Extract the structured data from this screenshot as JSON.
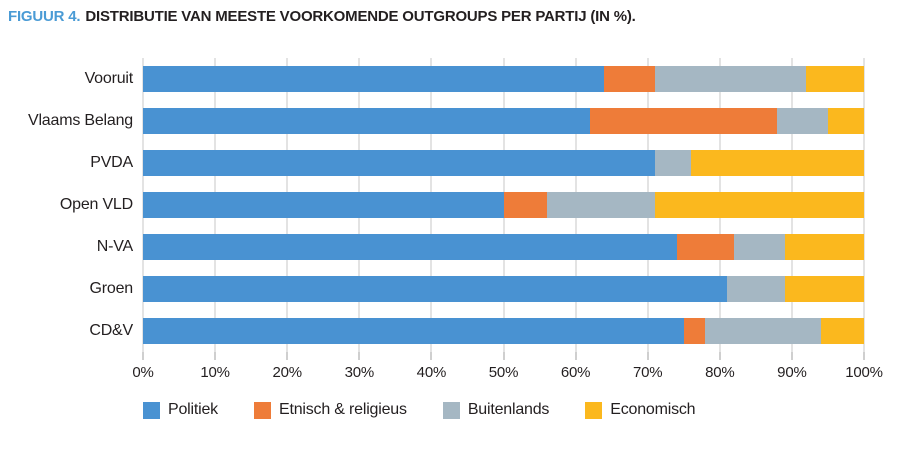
{
  "title": {
    "prefix": "FIGUUR 4.",
    "text": "DISTRIBUTIE VAN MEESTE VOORKOMENDE OUTGROUPS PER PARTIJ (IN %)."
  },
  "colors": {
    "title_prefix": "#4a9bd5",
    "text": "#231f20",
    "gridline": "#e3e3e3",
    "politiek": "#4992d2",
    "etnisch_religieus": "#ee7c39",
    "buitenlands": "#a5b7c3",
    "economisch": "#fbb81e"
  },
  "chart_data": {
    "type": "bar",
    "orientation": "horizontal",
    "stacked": true,
    "title": "FIGUUR 4. DISTRIBUTIE VAN MEESTE VOORKOMENDE OUTGROUPS PER PARTIJ (IN %).",
    "categories": [
      "Vooruit",
      "Vlaams Belang",
      "PVDA",
      "Open VLD",
      "N-VA",
      "Groen",
      "CD&V"
    ],
    "series": [
      {
        "name": "Politiek",
        "color": "#4992d2",
        "values": [
          64,
          62,
          71,
          50,
          74,
          81,
          75
        ]
      },
      {
        "name": "Etnisch & religieus",
        "color": "#ee7c39",
        "values": [
          7,
          26,
          0,
          6,
          8,
          0,
          3
        ]
      },
      {
        "name": "Buitenlands",
        "color": "#a5b7c3",
        "values": [
          21,
          7,
          5,
          15,
          7,
          8,
          16
        ]
      },
      {
        "name": "Economisch",
        "color": "#fbb81e",
        "values": [
          8,
          5,
          24,
          29,
          11,
          11,
          6
        ]
      }
    ],
    "x_axis": {
      "min": 0,
      "max": 100,
      "tick_step": 10,
      "ticks": [
        "0%",
        "10%",
        "20%",
        "30%",
        "40%",
        "50%",
        "60%",
        "70%",
        "80%",
        "90%",
        "100%"
      ]
    },
    "grid": true,
    "legend_position": "bottom",
    "legend": [
      "Politiek",
      "Etnisch & religieus",
      "Buitenlands",
      "Economisch"
    ]
  }
}
